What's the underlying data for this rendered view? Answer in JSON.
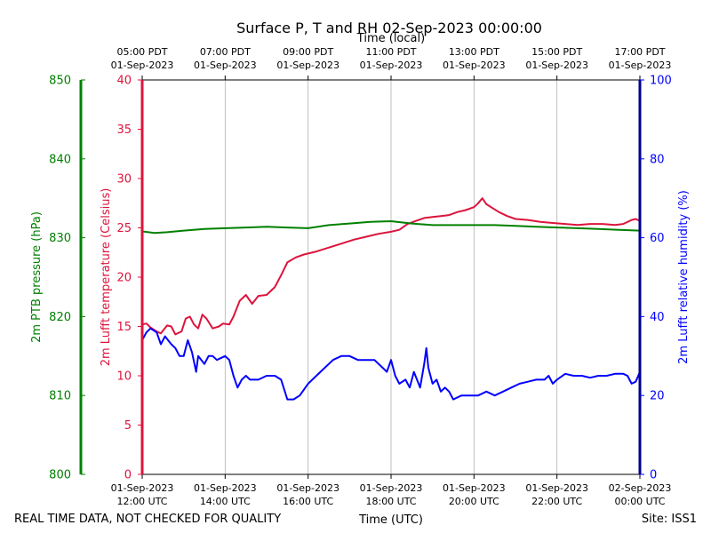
{
  "chart_data": {
    "type": "line",
    "title": "Surface P, T and RH 02-Sep-2023 00:00:00",
    "top_axis_label": "Time (local)",
    "bottom_axis_label": "Time (UTC)",
    "footer_left": "REAL TIME DATA, NOT CHECKED FOR QUALITY",
    "footer_right": "Site: ISS1",
    "x_range_hours_utc": [
      12,
      24
    ],
    "x_ticks_utc": [
      {
        "hour": 12,
        "date": "01-Sep-2023",
        "time": "12:00 UTC"
      },
      {
        "hour": 14,
        "date": "01-Sep-2023",
        "time": "14:00 UTC"
      },
      {
        "hour": 16,
        "date": "01-Sep-2023",
        "time": "16:00 UTC"
      },
      {
        "hour": 18,
        "date": "01-Sep-2023",
        "time": "18:00 UTC"
      },
      {
        "hour": 20,
        "date": "01-Sep-2023",
        "time": "20:00 UTC"
      },
      {
        "hour": 22,
        "date": "01-Sep-2023",
        "time": "22:00 UTC"
      },
      {
        "hour": 24,
        "date": "02-Sep-2023",
        "time": "00:00 UTC"
      }
    ],
    "x_ticks_local": [
      {
        "hour": 12,
        "time": "05:00 PDT",
        "date": "01-Sep-2023"
      },
      {
        "hour": 14,
        "time": "07:00 PDT",
        "date": "01-Sep-2023"
      },
      {
        "hour": 16,
        "time": "09:00 PDT",
        "date": "01-Sep-2023"
      },
      {
        "hour": 18,
        "time": "11:00 PDT",
        "date": "01-Sep-2023"
      },
      {
        "hour": 20,
        "time": "13:00 PDT",
        "date": "01-Sep-2023"
      },
      {
        "hour": 22,
        "time": "15:00 PDT",
        "date": "01-Sep-2023"
      },
      {
        "hour": 24,
        "time": "17:00 PDT",
        "date": "01-Sep-2023"
      }
    ],
    "axes": {
      "pressure": {
        "label": "2m PTB pressure (hPa)",
        "color": "#008000",
        "ylim": [
          800,
          850
        ],
        "ticks": [
          800,
          810,
          820,
          830,
          840,
          850
        ]
      },
      "temperature": {
        "label": "2m Lufft temperature (Celsius)",
        "color": "#dc143c",
        "ylim": [
          0,
          40
        ],
        "ticks": [
          0,
          5,
          10,
          15,
          20,
          25,
          30,
          35,
          40
        ]
      },
      "humidity": {
        "label": "2m Lufft relative humidity (%)",
        "color": "#0000ff",
        "ylim": [
          0,
          100
        ],
        "ticks": [
          0,
          20,
          40,
          60,
          80,
          100
        ]
      }
    },
    "series": [
      {
        "name": "2m Lufft temperature",
        "axis": "temperature",
        "color": "#dc143c",
        "points": [
          [
            12.0,
            15.2
          ],
          [
            12.1,
            15.3
          ],
          [
            12.2,
            14.9
          ],
          [
            12.35,
            14.5
          ],
          [
            12.45,
            14.3
          ],
          [
            12.6,
            15.1
          ],
          [
            12.7,
            15.0
          ],
          [
            12.8,
            14.2
          ],
          [
            12.95,
            14.5
          ],
          [
            13.05,
            15.8
          ],
          [
            13.15,
            16.0
          ],
          [
            13.25,
            15.2
          ],
          [
            13.35,
            14.8
          ],
          [
            13.45,
            16.2
          ],
          [
            13.55,
            15.8
          ],
          [
            13.7,
            14.8
          ],
          [
            13.85,
            15.0
          ],
          [
            13.95,
            15.3
          ],
          [
            14.1,
            15.2
          ],
          [
            14.2,
            16.0
          ],
          [
            14.35,
            17.6
          ],
          [
            14.5,
            18.2
          ],
          [
            14.65,
            17.3
          ],
          [
            14.8,
            18.1
          ],
          [
            15.0,
            18.2
          ],
          [
            15.2,
            19.0
          ],
          [
            15.35,
            20.2
          ],
          [
            15.5,
            21.5
          ],
          [
            15.7,
            22.0
          ],
          [
            15.9,
            22.3
          ],
          [
            16.2,
            22.6
          ],
          [
            16.5,
            23.0
          ],
          [
            16.8,
            23.4
          ],
          [
            17.1,
            23.8
          ],
          [
            17.4,
            24.1
          ],
          [
            17.7,
            24.4
          ],
          [
            18.0,
            24.6
          ],
          [
            18.2,
            24.8
          ],
          [
            18.4,
            25.4
          ],
          [
            18.6,
            25.7
          ],
          [
            18.8,
            26.0
          ],
          [
            19.0,
            26.1
          ],
          [
            19.2,
            26.2
          ],
          [
            19.4,
            26.3
          ],
          [
            19.6,
            26.6
          ],
          [
            19.8,
            26.8
          ],
          [
            20.0,
            27.1
          ],
          [
            20.1,
            27.5
          ],
          [
            20.2,
            28.0
          ],
          [
            20.3,
            27.4
          ],
          [
            20.45,
            27.0
          ],
          [
            20.6,
            26.6
          ],
          [
            20.8,
            26.2
          ],
          [
            21.0,
            25.9
          ],
          [
            21.3,
            25.8
          ],
          [
            21.6,
            25.6
          ],
          [
            21.9,
            25.5
          ],
          [
            22.2,
            25.4
          ],
          [
            22.5,
            25.3
          ],
          [
            22.8,
            25.4
          ],
          [
            23.1,
            25.4
          ],
          [
            23.4,
            25.3
          ],
          [
            23.6,
            25.4
          ],
          [
            23.8,
            25.8
          ],
          [
            23.9,
            25.9
          ],
          [
            24.0,
            25.7
          ]
        ]
      },
      {
        "name": "2m PTB pressure",
        "axis": "pressure",
        "color": "#008000",
        "points": [
          [
            12.0,
            830.8
          ],
          [
            12.3,
            830.6
          ],
          [
            12.6,
            830.7
          ],
          [
            13.0,
            830.9
          ],
          [
            13.5,
            831.1
          ],
          [
            14.0,
            831.2
          ],
          [
            14.5,
            831.3
          ],
          [
            15.0,
            831.4
          ],
          [
            15.5,
            831.3
          ],
          [
            16.0,
            831.2
          ],
          [
            16.5,
            831.6
          ],
          [
            17.0,
            831.8
          ],
          [
            17.5,
            832.0
          ],
          [
            18.0,
            832.1
          ],
          [
            18.5,
            831.8
          ],
          [
            19.0,
            831.6
          ],
          [
            19.5,
            831.6
          ],
          [
            20.0,
            831.6
          ],
          [
            20.5,
            831.6
          ],
          [
            21.0,
            831.5
          ],
          [
            21.5,
            831.4
          ],
          [
            22.0,
            831.3
          ],
          [
            22.5,
            831.2
          ],
          [
            23.0,
            831.1
          ],
          [
            23.5,
            831.0
          ],
          [
            24.0,
            830.9
          ]
        ]
      },
      {
        "name": "2m Lufft relative humidity",
        "axis": "humidity",
        "color": "#0000ff",
        "points": [
          [
            12.0,
            34
          ],
          [
            12.1,
            36
          ],
          [
            12.2,
            37
          ],
          [
            12.35,
            36
          ],
          [
            12.45,
            33
          ],
          [
            12.55,
            35
          ],
          [
            12.7,
            33
          ],
          [
            12.8,
            32
          ],
          [
            12.9,
            30
          ],
          [
            13.0,
            30
          ],
          [
            13.1,
            34
          ],
          [
            13.2,
            31
          ],
          [
            13.3,
            26
          ],
          [
            13.35,
            30
          ],
          [
            13.5,
            28
          ],
          [
            13.6,
            30
          ],
          [
            13.7,
            30
          ],
          [
            13.8,
            29
          ],
          [
            14.0,
            30
          ],
          [
            14.1,
            29
          ],
          [
            14.2,
            25
          ],
          [
            14.3,
            22
          ],
          [
            14.4,
            24
          ],
          [
            14.5,
            25
          ],
          [
            14.6,
            24
          ],
          [
            14.8,
            24
          ],
          [
            15.0,
            25
          ],
          [
            15.2,
            25
          ],
          [
            15.35,
            24
          ],
          [
            15.5,
            19
          ],
          [
            15.65,
            19
          ],
          [
            15.8,
            20
          ],
          [
            16.0,
            23
          ],
          [
            16.2,
            25
          ],
          [
            16.4,
            27
          ],
          [
            16.6,
            29
          ],
          [
            16.8,
            30
          ],
          [
            17.0,
            30
          ],
          [
            17.2,
            29
          ],
          [
            17.4,
            29
          ],
          [
            17.6,
            29
          ],
          [
            17.8,
            27
          ],
          [
            17.9,
            26
          ],
          [
            18.0,
            29
          ],
          [
            18.1,
            25
          ],
          [
            18.2,
            23
          ],
          [
            18.35,
            24
          ],
          [
            18.45,
            22
          ],
          [
            18.55,
            26
          ],
          [
            18.7,
            22
          ],
          [
            18.8,
            28
          ],
          [
            18.85,
            32
          ],
          [
            18.9,
            27
          ],
          [
            19.0,
            23
          ],
          [
            19.1,
            24
          ],
          [
            19.2,
            21
          ],
          [
            19.3,
            22
          ],
          [
            19.4,
            21
          ],
          [
            19.5,
            19
          ],
          [
            19.7,
            20
          ],
          [
            19.9,
            20
          ],
          [
            20.1,
            20
          ],
          [
            20.3,
            21
          ],
          [
            20.5,
            20
          ],
          [
            20.7,
            21
          ],
          [
            20.9,
            22
          ],
          [
            21.1,
            23
          ],
          [
            21.3,
            23.5
          ],
          [
            21.5,
            24
          ],
          [
            21.7,
            24
          ],
          [
            21.8,
            25
          ],
          [
            21.9,
            23
          ],
          [
            22.0,
            24
          ],
          [
            22.2,
            25.5
          ],
          [
            22.4,
            25
          ],
          [
            22.6,
            25
          ],
          [
            22.8,
            24.5
          ],
          [
            23.0,
            25
          ],
          [
            23.2,
            25
          ],
          [
            23.4,
            25.5
          ],
          [
            23.6,
            25.5
          ],
          [
            23.7,
            25
          ],
          [
            23.8,
            23
          ],
          [
            23.9,
            23.5
          ],
          [
            24.0,
            26
          ]
        ]
      }
    ]
  }
}
